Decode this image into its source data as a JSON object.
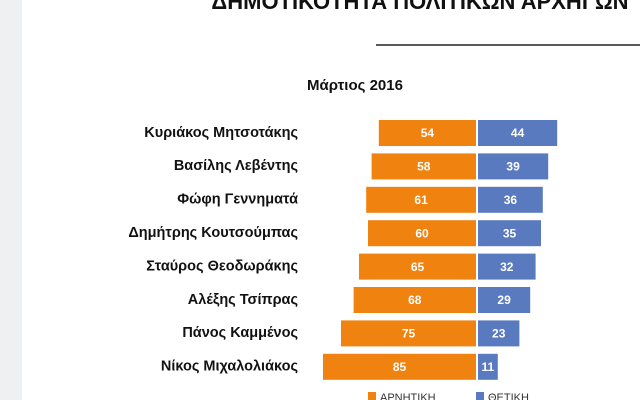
{
  "chart_data": {
    "type": "bar",
    "orientation": "diverging-horizontal",
    "title": "ΔΗΜΟΤΙΚΟΤΗΤΑ ΠΟΛΙΤΙΚΩΝ ΑΡΧΗΓΩΝ",
    "subtitle": "Μάρτιος 2016",
    "categories": [
      "Κυριάκος Μητσοτάκης",
      "Βασίλης Λεβέντης",
      "Φώφη Γεννηματά",
      "Δημήτρης Κουτσούμπας",
      "Σταύρος Θεοδωράκης",
      "Αλέξης Τσίπρας",
      "Πάνος Καμμένος",
      "Νίκος Μιχαλολιάκος"
    ],
    "series": [
      {
        "name": "ΑΡΝΗΤΙΚΗ",
        "color": "#f0820f",
        "values": [
          54,
          58,
          61,
          60,
          65,
          68,
          75,
          85
        ]
      },
      {
        "name": "ΘΕΤΙΚΗ",
        "color": "#5a7abf",
        "values": [
          44,
          39,
          36,
          35,
          32,
          29,
          23,
          11
        ]
      }
    ]
  }
}
